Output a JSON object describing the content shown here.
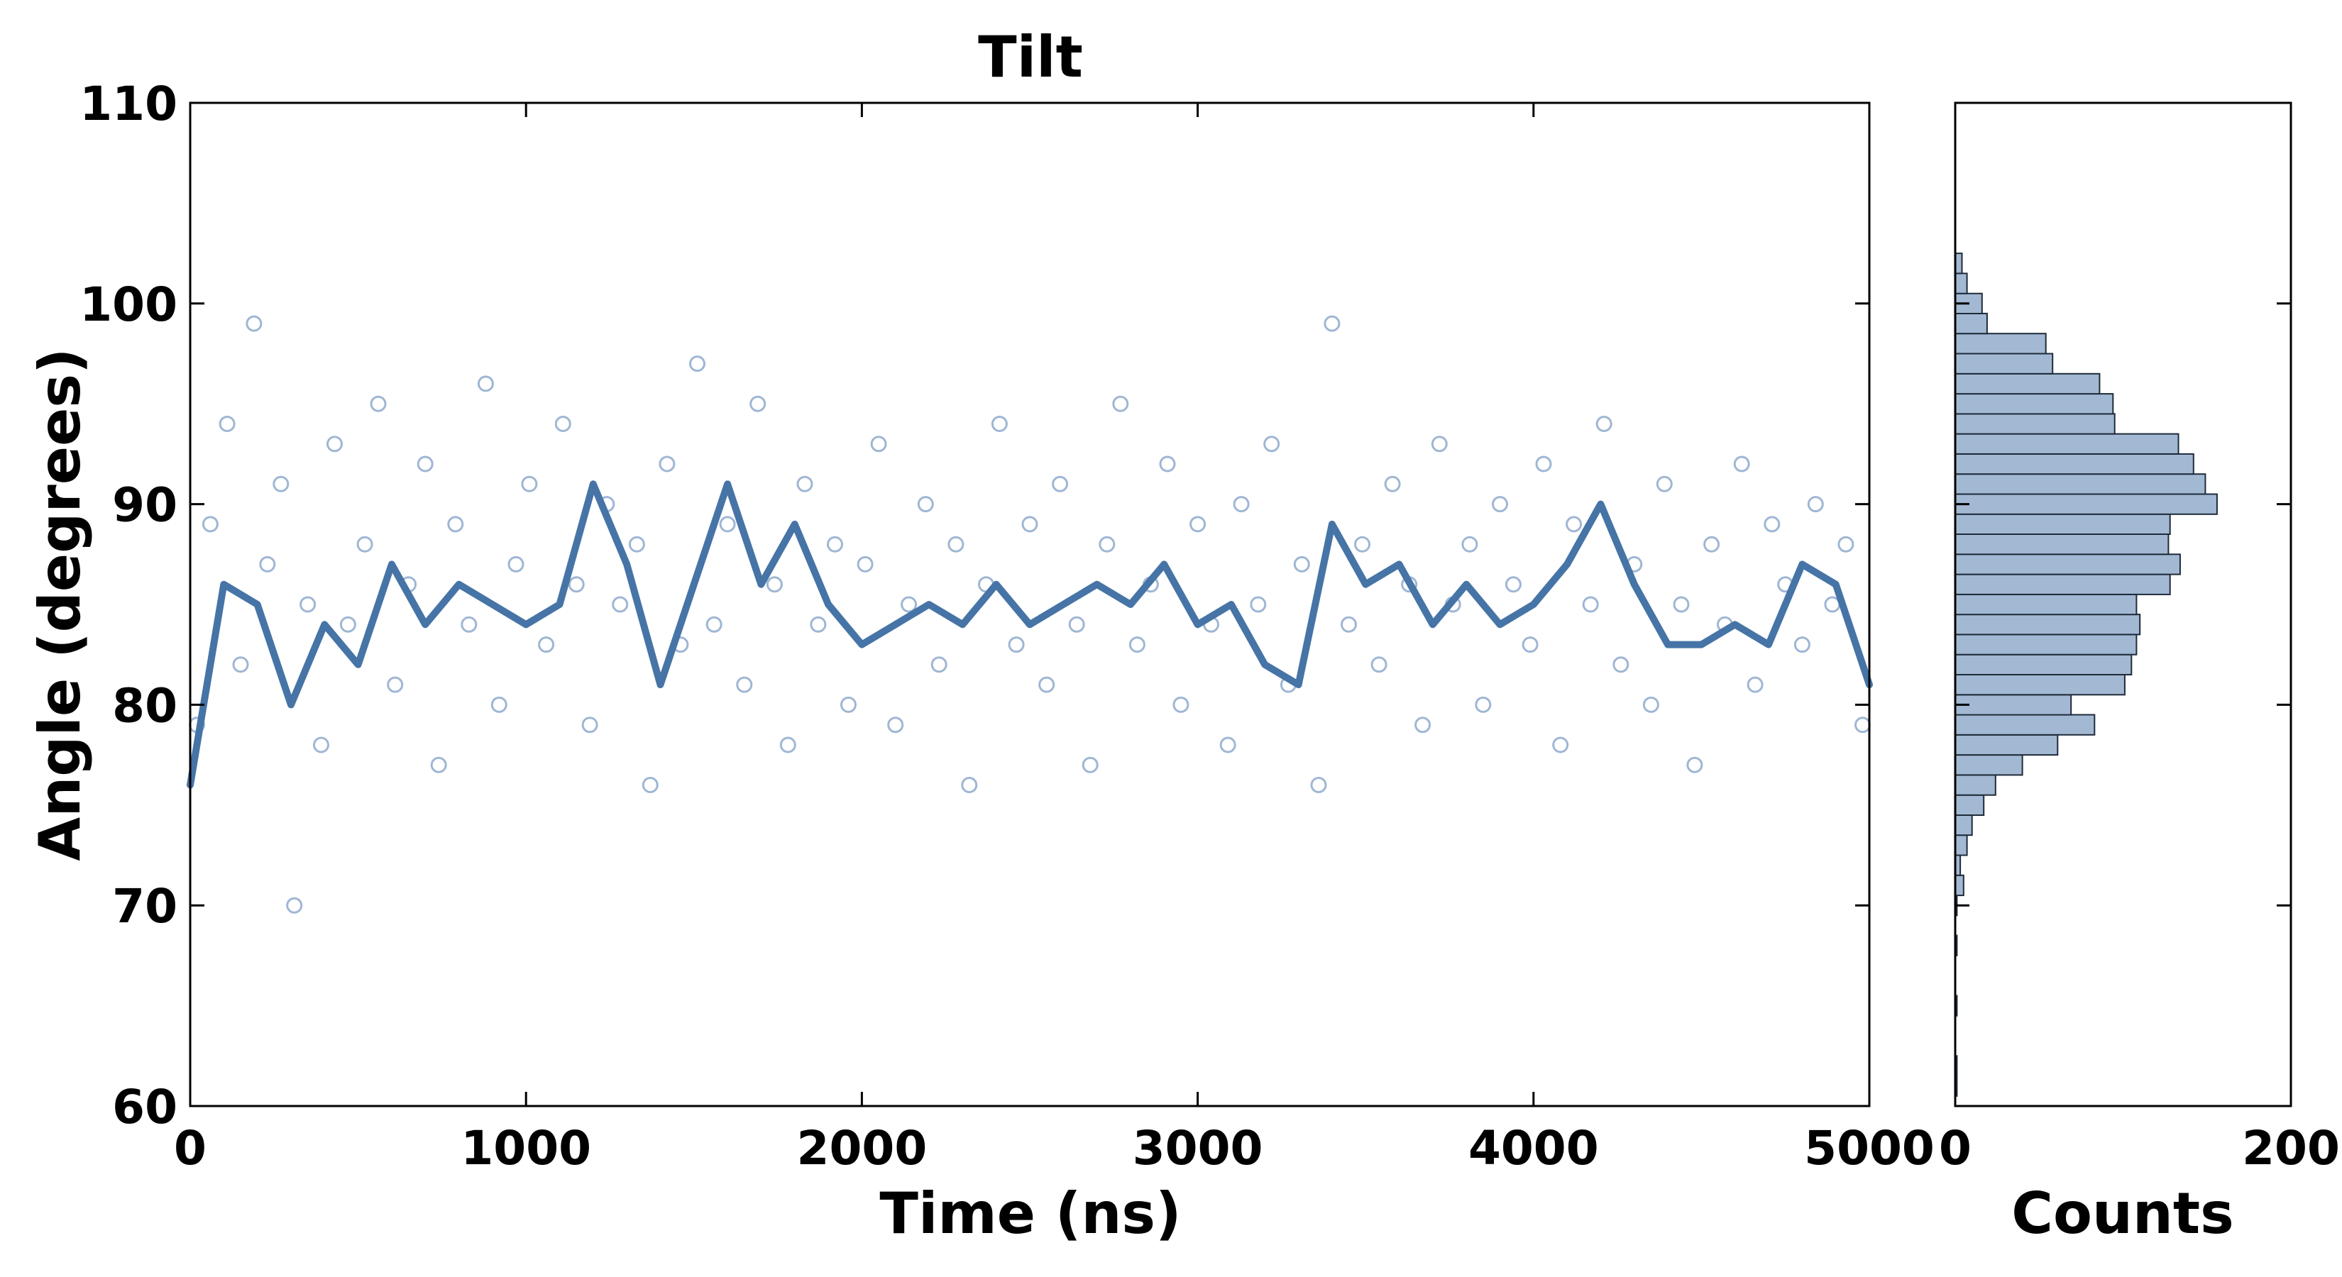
{
  "chart_data": [
    {
      "type": "scatter",
      "title": "Tilt",
      "xlabel": "Time (ns)",
      "ylabel": "Angle (degrees)",
      "xlim": [
        0,
        5000
      ],
      "ylim": [
        60,
        110
      ],
      "x_ticks": [
        "0",
        "1000",
        "2000",
        "3000",
        "4000",
        "5000"
      ],
      "y_ticks": [
        "60",
        "70",
        "80",
        "90",
        "100",
        "110"
      ],
      "x_tick_values": [
        0,
        1000,
        2000,
        3000,
        4000,
        5000
      ],
      "y_tick_values": [
        60,
        70,
        80,
        90,
        100,
        110
      ],
      "grid": false,
      "marker_color": "#9fb6d4",
      "line_color": "#4674a6",
      "series": [
        {
          "kind": "points",
          "x": [
            0,
            100,
            200,
            300,
            400,
            500,
            600,
            700,
            800,
            900,
            1000,
            1100,
            1200,
            1300,
            1400,
            1500,
            1600,
            1700,
            1800,
            1900,
            2000,
            2100,
            2200,
            2300,
            2400,
            2500,
            2600,
            2700,
            2800,
            2900,
            3000,
            3100,
            3200,
            3300,
            3400,
            3500,
            3600,
            3700,
            3800,
            3900,
            4000,
            4100,
            4200,
            4300,
            4400,
            4500,
            4600,
            4700,
            4800,
            4900,
            5000
          ],
          "y": [
            76,
            87,
            86,
            79,
            84,
            82,
            88,
            85,
            87,
            86,
            85,
            86,
            92,
            88,
            82,
            86,
            92,
            87,
            90,
            86,
            83,
            84,
            85,
            84,
            86,
            84,
            85,
            86,
            85,
            87,
            84,
            85,
            83,
            82,
            90,
            86,
            88,
            85,
            87,
            85,
            86,
            88,
            91,
            86,
            84,
            83,
            85,
            84,
            88,
            86,
            81
          ]
        },
        {
          "kind": "moving-average",
          "x": [
            0,
            100,
            200,
            300,
            400,
            500,
            600,
            700,
            800,
            900,
            1000,
            1100,
            1200,
            1300,
            1400,
            1500,
            1600,
            1700,
            1800,
            1900,
            2000,
            2100,
            2200,
            2300,
            2400,
            2500,
            2600,
            2700,
            2800,
            2900,
            3000,
            3100,
            3200,
            3300,
            3400,
            3500,
            3600,
            3700,
            3800,
            3900,
            4000,
            4100,
            4200,
            4300,
            4400,
            4500,
            4600,
            4700,
            4800,
            4900,
            5000
          ],
          "y": [
            76,
            86,
            85,
            80,
            84,
            82,
            87,
            84,
            86,
            85,
            84,
            85,
            91,
            87,
            81,
            86,
            91,
            86,
            89,
            85,
            83,
            84,
            85,
            84,
            86,
            84,
            85,
            86,
            85,
            87,
            84,
            85,
            82,
            81,
            89,
            86,
            87,
            84,
            86,
            84,
            85,
            87,
            90,
            86,
            83,
            83,
            84,
            83,
            87,
            86,
            81
          ]
        }
      ],
      "scatter_sample": {
        "x": [
          20,
          60,
          110,
          150,
          190,
          230,
          270,
          310,
          350,
          390,
          430,
          470,
          520,
          560,
          610,
          650,
          700,
          740,
          790,
          830,
          880,
          920,
          970,
          1010,
          1060,
          1110,
          1150,
          1190,
          1240,
          1280,
          1330,
          1370,
          1420,
          1460,
          1510,
          1560,
          1600,
          1650,
          1690,
          1740,
          1780,
          1830,
          1870,
          1920,
          1960,
          2010,
          2050,
          2100,
          2140,
          2190,
          2230,
          2280,
          2320,
          2370,
          2410,
          2460,
          2500,
          2550,
          2590,
          2640,
          2680,
          2730,
          2770,
          2820,
          2860,
          2910,
          2950,
          3000,
          3040,
          3090,
          3130,
          3180,
          3220,
          3270,
          3310,
          3360,
          3400,
          3450,
          3490,
          3540,
          3580,
          3630,
          3670,
          3720,
          3760,
          3810,
          3850,
          3900,
          3940,
          3990,
          4030,
          4080,
          4120,
          4170,
          4210,
          4260,
          4300,
          4350,
          4390,
          4440,
          4480,
          4530,
          4570,
          4620,
          4660,
          4710,
          4750,
          4800,
          4840,
          4890,
          4930,
          4980
        ],
        "y": [
          79,
          89,
          94,
          82,
          99,
          87,
          91,
          70,
          85,
          78,
          93,
          84,
          88,
          95,
          81,
          86,
          92,
          77,
          89,
          84,
          96,
          80,
          87,
          91,
          83,
          94,
          86,
          79,
          90,
          85,
          88,
          76,
          92,
          83,
          97,
          84,
          89,
          81,
          95,
          86,
          78,
          91,
          84,
          88,
          80,
          87,
          93,
          79,
          85,
          90,
          82,
          88,
          76,
          86,
          94,
          83,
          89,
          81,
          91,
          84,
          77,
          88,
          95,
          83,
          86,
          92,
          80,
          89,
          84,
          78,
          90,
          85,
          93,
          81,
          87,
          76,
          99,
          84,
          88,
          82,
          91,
          86,
          79,
          93,
          85,
          88,
          80,
          90,
          86,
          83,
          92,
          78,
          89,
          85,
          94,
          82,
          87,
          80,
          91,
          85,
          77,
          88,
          84,
          92,
          81,
          89,
          86,
          83,
          90,
          85,
          88,
          79
        ]
      }
    },
    {
      "type": "bar",
      "orientation": "horizontal",
      "title": "",
      "xlabel": "Counts",
      "ylabel": "",
      "xlim": [
        0,
        200
      ],
      "ylim": [
        60,
        110
      ],
      "x_ticks": [
        "0",
        "200"
      ],
      "x_tick_values": [
        0,
        200
      ],
      "grid": false,
      "bar_color": "#a3b9d3",
      "edge_color": "#1e2b3a",
      "bin_width": 1,
      "bins": [
        61,
        62,
        63,
        64,
        65,
        66,
        67,
        68,
        69,
        70,
        71,
        72,
        73,
        74,
        75,
        76,
        77,
        78,
        79,
        80,
        81,
        82,
        83,
        84,
        85,
        86,
        87,
        88,
        89,
        90,
        91,
        92,
        93,
        94,
        95,
        96,
        97,
        98,
        99,
        100,
        101,
        102
      ],
      "values": [
        1,
        1,
        0,
        0,
        1,
        0,
        0,
        1,
        0,
        1,
        5,
        3,
        7,
        10,
        17,
        24,
        40,
        61,
        83,
        69,
        101,
        105,
        108,
        110,
        108,
        128,
        134,
        127,
        128,
        156,
        149,
        142,
        133,
        95,
        94,
        86,
        58,
        54,
        19,
        16,
        7,
        4
      ]
    }
  ]
}
